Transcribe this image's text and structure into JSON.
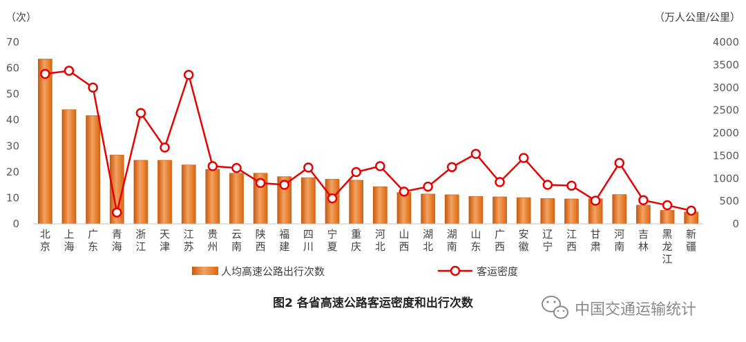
{
  "chart_data": {
    "type": "bar+line",
    "title": "图2  各省高速公路客运密度和出行次数",
    "left_axis_unit": "（次）",
    "right_axis_unit": "（万人公里/公里）",
    "left_ylim": [
      0,
      70
    ],
    "left_ticks": [
      0,
      10,
      20,
      30,
      40,
      50,
      60,
      70
    ],
    "right_ylim": [
      0,
      4000
    ],
    "right_ticks": [
      0,
      500,
      1000,
      1500,
      2000,
      2500,
      3000,
      3500,
      4000
    ],
    "legend_position": "bottom",
    "categories": [
      "北京",
      "上海",
      "广东",
      "青海",
      "浙江",
      "天津",
      "江苏",
      "贵州",
      "云南",
      "陕西",
      "福建",
      "四川",
      "宁夏",
      "重庆",
      "河北",
      "山西",
      "湖北",
      "湖南",
      "山东",
      "广西",
      "安徽",
      "辽宁",
      "江西",
      "甘肃",
      "河南",
      "吉林",
      "黑龙江",
      "新疆"
    ],
    "series": [
      {
        "name": "人均高速公路出行次数",
        "type": "bar",
        "axis": "left",
        "color": "#e46c0a",
        "values": [
          63.5,
          44,
          41.7,
          26.5,
          24.5,
          24.5,
          22.7,
          21,
          19.5,
          19.5,
          18.2,
          17.8,
          17.2,
          16.8,
          14.3,
          12.1,
          11.5,
          11.2,
          10.6,
          10.4,
          10.1,
          9.8,
          9.6,
          9.7,
          11.3,
          7.2,
          5.2,
          4.6
        ]
      },
      {
        "name": "客运密度",
        "type": "line",
        "axis": "right",
        "color": "#e60000",
        "values": [
          3300,
          3370,
          3000,
          250,
          2440,
          1680,
          3280,
          1270,
          1230,
          900,
          860,
          1240,
          560,
          1140,
          1270,
          710,
          820,
          1250,
          1540,
          920,
          1450,
          860,
          840,
          510,
          1340,
          520,
          410,
          290
        ]
      }
    ]
  },
  "watermark": {
    "text": "中国交通运输统计"
  }
}
